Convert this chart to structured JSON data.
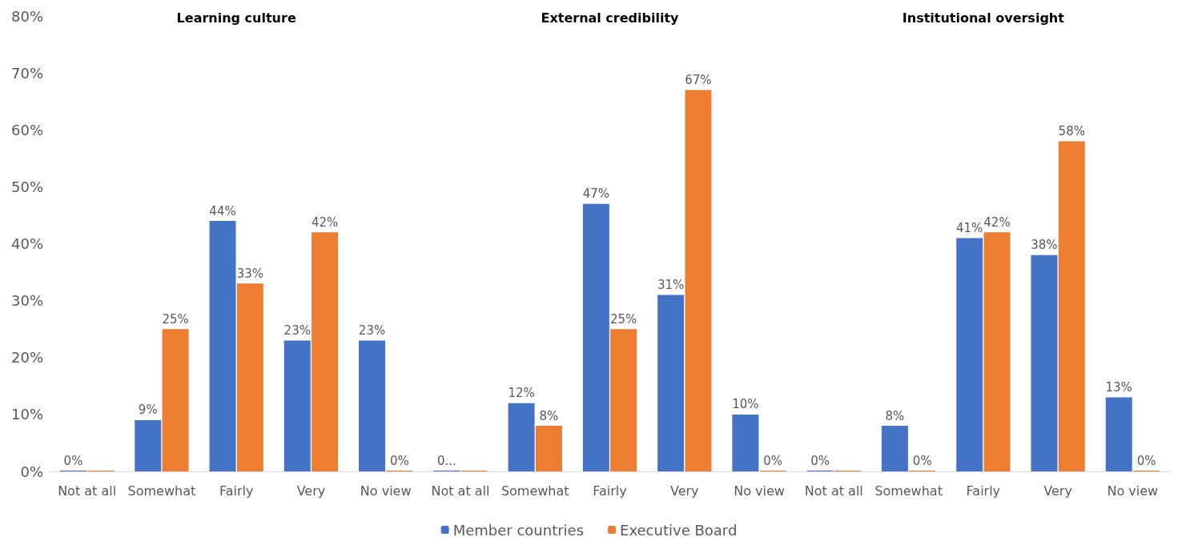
{
  "chart_data": {
    "type": "bar",
    "categories": [
      "Not at all",
      "Somewhat",
      "Fairly",
      "Very",
      "No view",
      "Not at all",
      "Somewhat",
      "Fairly",
      "Very",
      "No view",
      "Not at all",
      "Somewhat",
      "Fairly",
      "Very",
      "No view"
    ],
    "series": [
      {
        "name": "Member countries",
        "color": "#4472c4",
        "values": [
          0,
          9,
          44,
          23,
          23,
          0,
          12,
          47,
          31,
          10,
          0,
          8,
          41,
          38,
          13
        ],
        "value_labels": [
          "0%",
          "9%",
          "44%",
          "23%",
          "23%",
          "0...",
          "12%",
          "47%",
          "31%",
          "10%",
          "0%",
          "8%",
          "41%",
          "38%",
          "13%"
        ]
      },
      {
        "name": "Executive Board",
        "color": "#ed7d31",
        "values": [
          0,
          25,
          33,
          42,
          0,
          0,
          8,
          25,
          67,
          0,
          0,
          0,
          42,
          58,
          0
        ],
        "value_labels": [
          null,
          "25%",
          "33%",
          "42%",
          "0%",
          null,
          "8%",
          "25%",
          "67%",
          "0%",
          null,
          "0%",
          "42%",
          "58%",
          "0%"
        ]
      }
    ],
    "annotations": [
      "Learning culture",
      "External credibility",
      "Institutional oversight"
    ],
    "ylim": [
      0,
      80
    ],
    "yticks": [
      {
        "value": 0,
        "label": "0%"
      },
      {
        "value": 10,
        "label": "10%"
      },
      {
        "value": 20,
        "label": "20%"
      },
      {
        "value": 30,
        "label": "30%"
      },
      {
        "value": 40,
        "label": "40%"
      },
      {
        "value": 50,
        "label": "50%"
      },
      {
        "value": 60,
        "label": "60%"
      },
      {
        "value": 70,
        "label": "70%"
      },
      {
        "value": 80,
        "label": "80%"
      }
    ],
    "grid": false,
    "legend": "bottom"
  }
}
